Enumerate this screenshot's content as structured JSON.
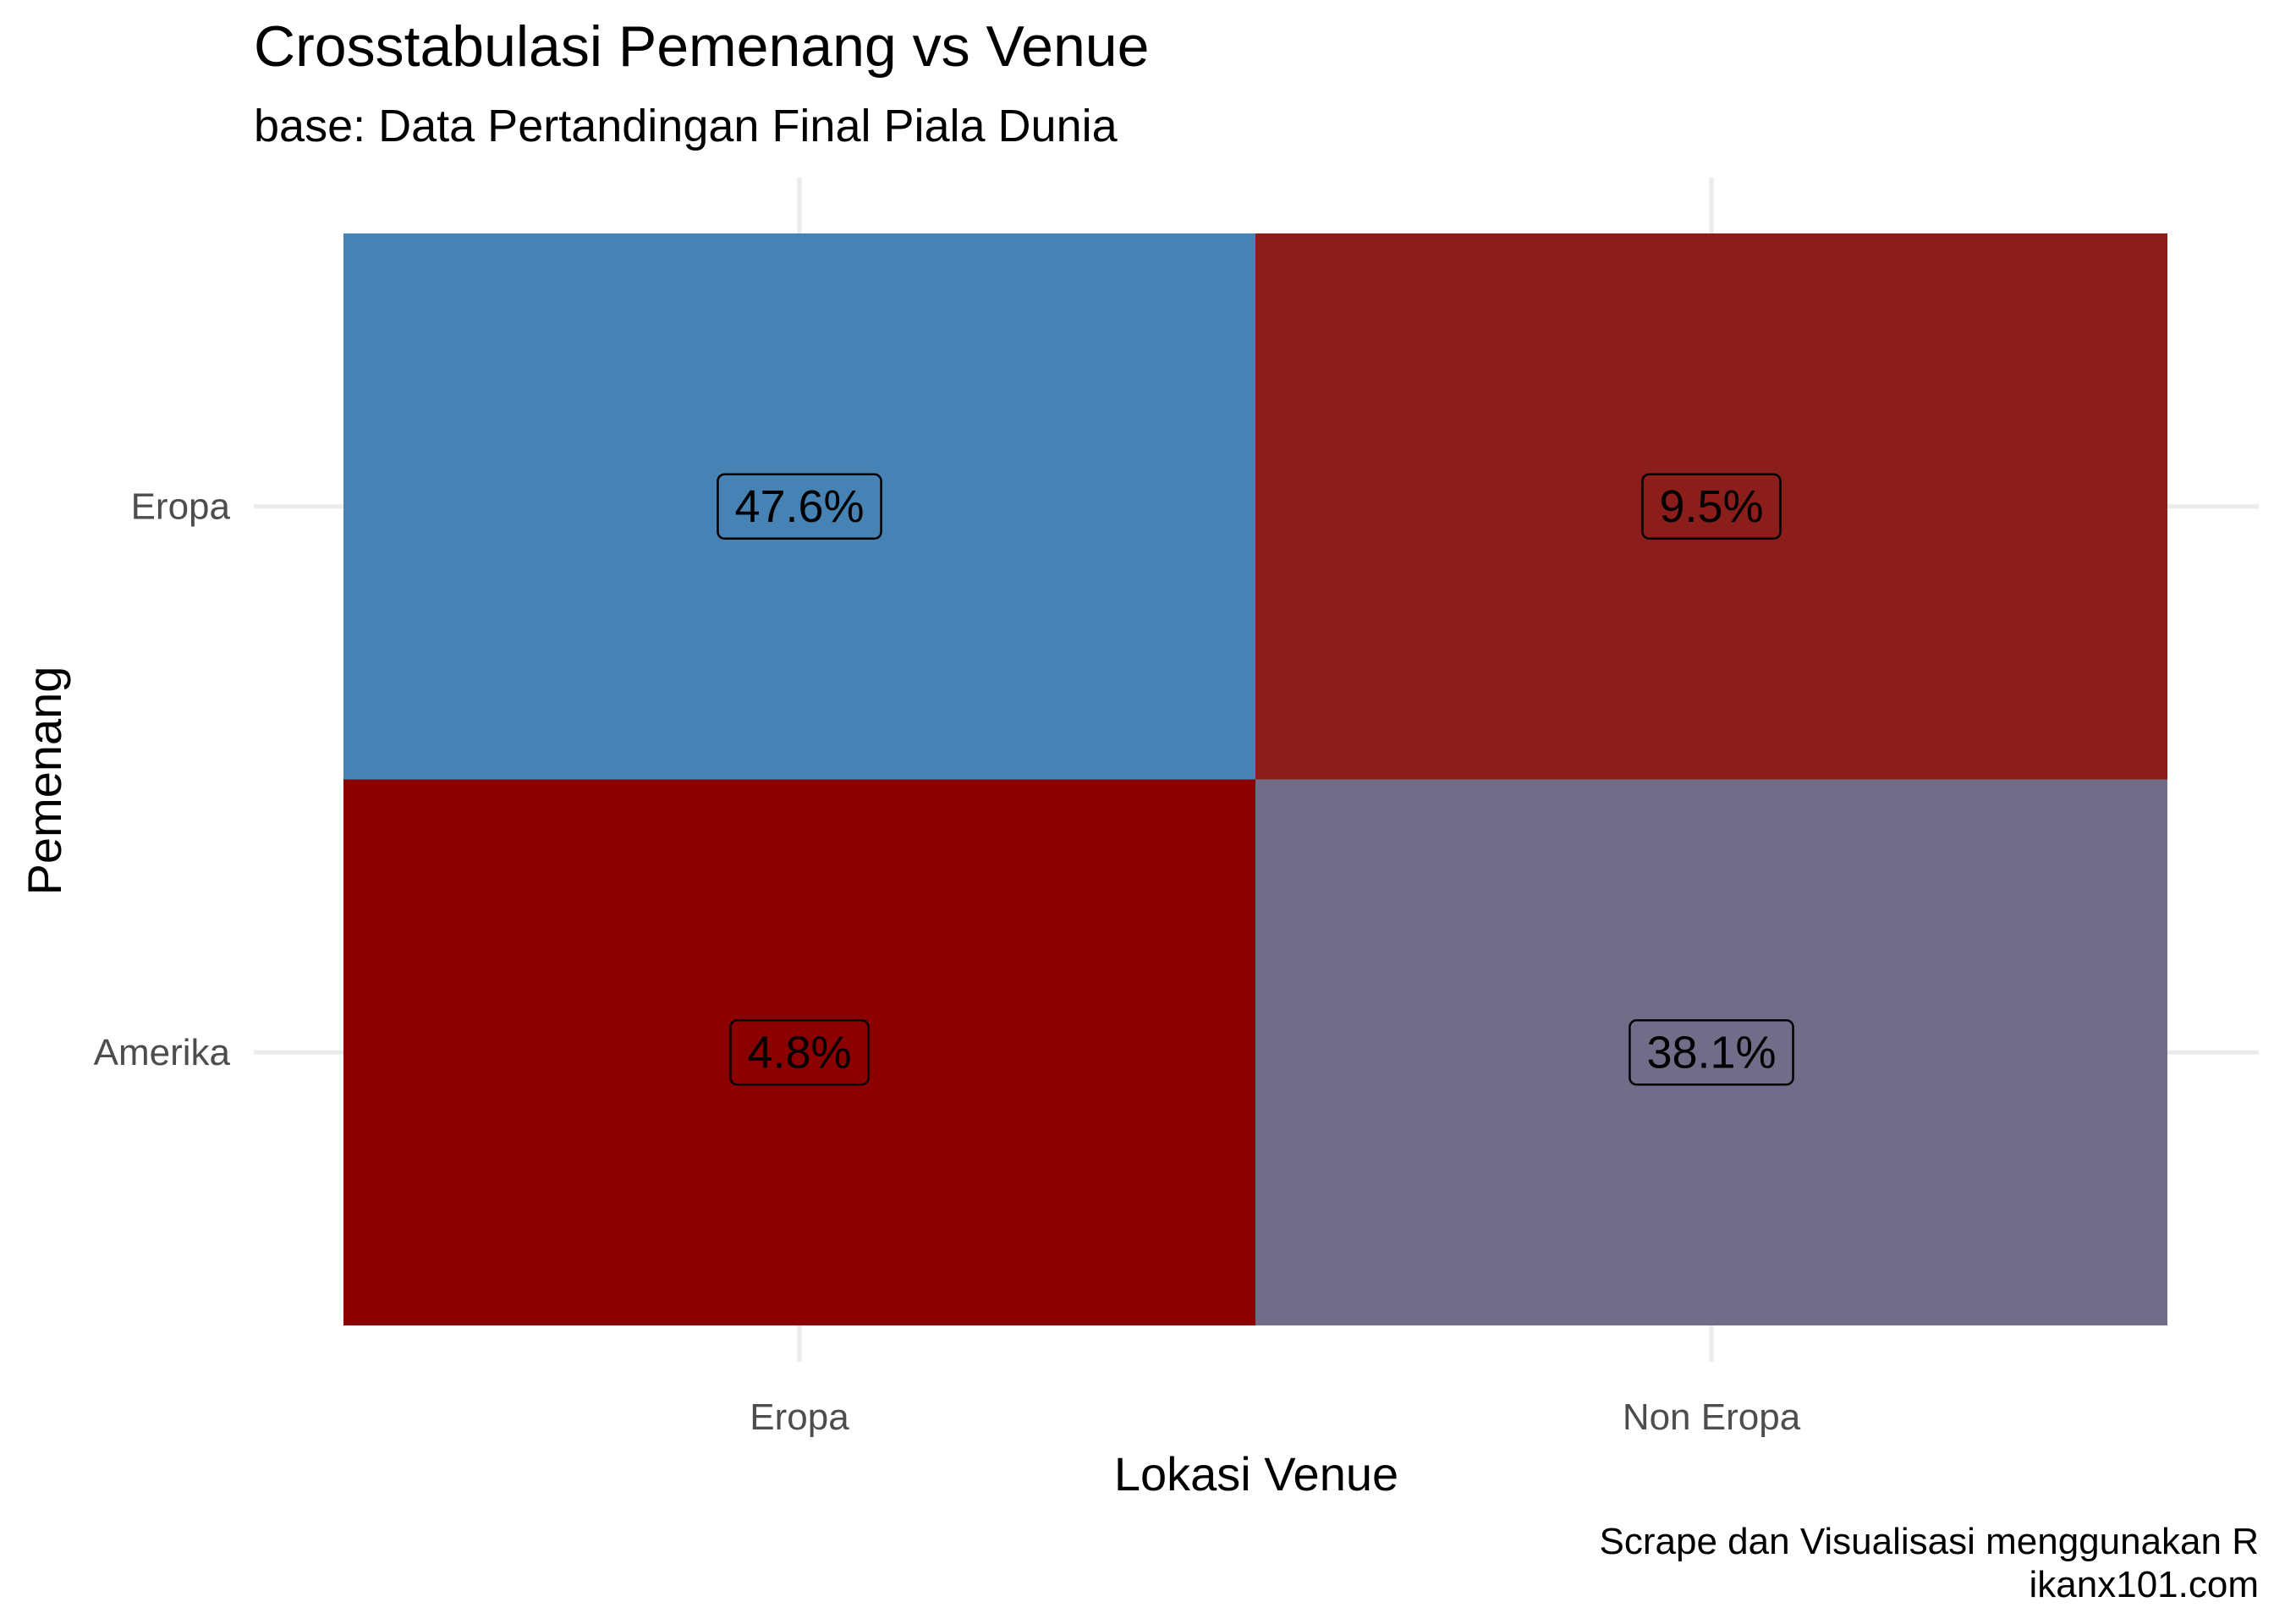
{
  "chart_data": {
    "type": "heatmap",
    "title": "Crosstabulasi Pemenang vs Venue",
    "subtitle": "base: Data Pertandingan Final Piala Dunia",
    "xlabel": "Lokasi Venue",
    "ylabel": "Pemenang",
    "x_categories": [
      "Eropa",
      "Non Eropa"
    ],
    "y_categories": [
      "Eropa",
      "Amerika"
    ],
    "cells": [
      {
        "x": "Eropa",
        "y": "Eropa",
        "value": 47.6,
        "label": "47.6%",
        "color": "#4682b4"
      },
      {
        "x": "Non Eropa",
        "y": "Eropa",
        "value": 9.5,
        "label": "9.5%",
        "color": "#8b1e1a"
      },
      {
        "x": "Eropa",
        "y": "Amerika",
        "value": 4.8,
        "label": "4.8%",
        "color": "#8b0000"
      },
      {
        "x": "Non Eropa",
        "y": "Amerika",
        "value": 38.1,
        "label": "38.1%",
        "color": "#716d89"
      }
    ],
    "caption": [
      "Scrape dan Visualisasi menggunakan R",
      "ikanx101.com"
    ],
    "legend": "none",
    "grid": true
  }
}
